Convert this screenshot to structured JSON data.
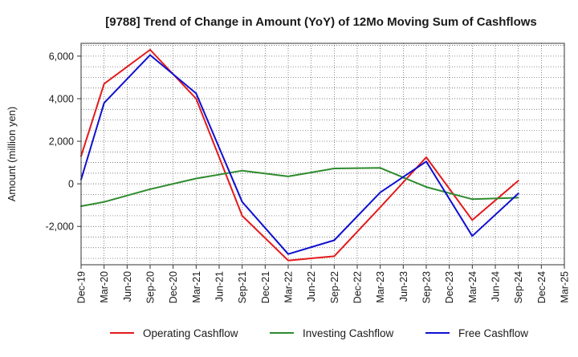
{
  "chart_data": {
    "type": "line",
    "title": "[9788]  Trend of Change in Amount (YoY) of 12Mo Moving Sum of Cashflows",
    "xlabel": "",
    "ylabel": "Amount (million yen)",
    "ylim": [
      -3800,
      6600
    ],
    "yticks": [
      -2000,
      0,
      2000,
      4000,
      6000
    ],
    "ytick_labels": [
      "-2,000",
      "0",
      "2,000",
      "4,000",
      "6,000"
    ],
    "categories": [
      "Dec-19",
      "Mar-20",
      "Jun-20",
      "Sep-20",
      "Dec-20",
      "Mar-21",
      "Jun-21",
      "Sep-21",
      "Dec-21",
      "Mar-22",
      "Jun-22",
      "Sep-22",
      "Dec-22",
      "Mar-23",
      "Jun-23",
      "Sep-23",
      "Dec-23",
      "Mar-24",
      "Jun-24",
      "Sep-24",
      "Dec-24",
      "Mar-25"
    ],
    "grid": true,
    "legend_position": "bottom",
    "series": [
      {
        "name": "Operating Cashflow",
        "color": "#e31a1c",
        "values": [
          1300,
          4700,
          null,
          6300,
          null,
          4000,
          null,
          -1500,
          null,
          -3600,
          null,
          -3400,
          null,
          -1100,
          null,
          1250,
          null,
          -1700,
          null,
          150,
          null,
          null
        ]
      },
      {
        "name": "Investing Cashflow",
        "color": "#2e8b2e",
        "values": [
          -1050,
          -850,
          null,
          -250,
          null,
          250,
          null,
          620,
          null,
          350,
          null,
          720,
          null,
          750,
          null,
          -150,
          null,
          -720,
          null,
          -650,
          null,
          null
        ]
      },
      {
        "name": "Free Cashflow",
        "color": "#1010d0",
        "values": [
          200,
          3800,
          null,
          6050,
          null,
          4250,
          null,
          -850,
          null,
          -3300,
          null,
          -2650,
          null,
          -400,
          null,
          1050,
          null,
          -2450,
          null,
          -450,
          null,
          null
        ]
      }
    ]
  }
}
